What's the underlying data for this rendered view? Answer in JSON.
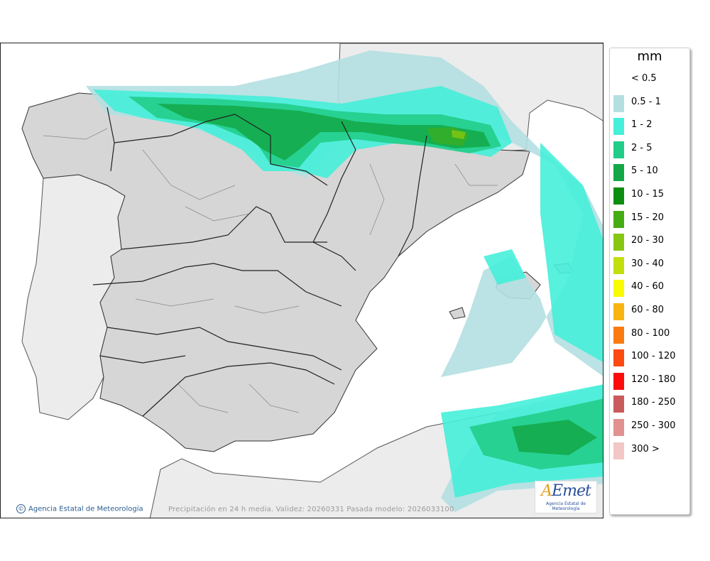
{
  "legend": {
    "unit": "mm",
    "entries": [
      {
        "label": "< 0.5",
        "color": "#ffffff"
      },
      {
        "label": "0.5 - 1",
        "color": "#b4dfe1"
      },
      {
        "label": "1 - 2",
        "color": "#45efd9"
      },
      {
        "label": "2 - 5",
        "color": "#22cd89"
      },
      {
        "label": "5 - 10",
        "color": "#13a847"
      },
      {
        "label": "10 - 15",
        "color": "#0c8e10"
      },
      {
        "label": "15 - 20",
        "color": "#44ad12"
      },
      {
        "label": "20 - 30",
        "color": "#87c712"
      },
      {
        "label": "30 - 40",
        "color": "#c2df0c"
      },
      {
        "label": "40 - 60",
        "color": "#fafa00"
      },
      {
        "label": "60 - 80",
        "color": "#f8b511"
      },
      {
        "label": "80 - 100",
        "color": "#fb7a10"
      },
      {
        "label": "100 - 120",
        "color": "#fc4a11"
      },
      {
        "label": "120 - 180",
        "color": "#fd0c0c"
      },
      {
        "label": "180 - 250",
        "color": "#cb5a5c"
      },
      {
        "label": "250 - 300",
        "color": "#e29191"
      },
      {
        "label": "300 >",
        "color": "#f2c7c5"
      }
    ]
  },
  "map": {
    "credit": "Agencia Estatal de Meteorología",
    "caption": "Precipitación en 24 h media. Validez: 20260331 Pasada modelo: 2026033100",
    "logo": {
      "mark_a": "A",
      "mark_rest": "Emet",
      "sub": "Agencia Estatal de Meteorología"
    },
    "colors": {
      "land": "#d6d6d6",
      "neighbor": "#ececec",
      "sea": "#ffffff"
    }
  }
}
